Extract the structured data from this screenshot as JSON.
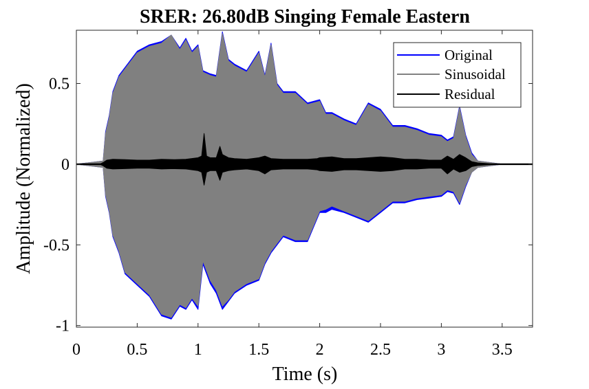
{
  "chart_data": {
    "type": "line",
    "title": "SRER: 26.80dB Singing Female Eastern",
    "xlabel": "Time (s)",
    "ylabel": "Amplitude (Normalized)",
    "xlim": [
      0,
      3.75
    ],
    "ylim": [
      -1.01,
      0.83
    ],
    "x_ticks": [
      0,
      0.5,
      1,
      1.5,
      2,
      2.5,
      3,
      3.5
    ],
    "x_tick_labels": [
      "0",
      "0.5",
      "1",
      "1.5",
      "2",
      "2.5",
      "3",
      "3.5"
    ],
    "y_ticks": [
      -1,
      -0.5,
      0,
      0.5
    ],
    "y_tick_labels": [
      "-1",
      "-0.5",
      "0",
      "0.5"
    ],
    "grid": false,
    "legend_position": "top-right",
    "series": [
      {
        "name": "Original",
        "color": "#0000ff",
        "style": "envelope",
        "x": [
          0,
          0.22,
          0.24,
          0.27,
          0.3,
          0.35,
          0.4,
          0.5,
          0.6,
          0.7,
          0.78,
          0.85,
          0.9,
          0.95,
          1.0,
          1.04,
          1.1,
          1.15,
          1.2,
          1.25,
          1.3,
          1.4,
          1.5,
          1.55,
          1.6,
          1.65,
          1.7,
          1.8,
          1.9,
          2.0,
          2.05,
          2.1,
          2.2,
          2.3,
          2.4,
          2.5,
          2.6,
          2.7,
          2.8,
          2.9,
          3.0,
          3.05,
          3.1,
          3.15,
          3.2,
          3.25,
          3.3,
          3.4,
          3.5,
          3.75
        ],
        "upper": [
          0.0,
          0.02,
          0.2,
          0.3,
          0.45,
          0.55,
          0.6,
          0.7,
          0.74,
          0.76,
          0.8,
          0.72,
          0.78,
          0.7,
          0.74,
          0.58,
          0.56,
          0.55,
          0.82,
          0.65,
          0.62,
          0.58,
          0.7,
          0.55,
          0.75,
          0.5,
          0.45,
          0.45,
          0.38,
          0.4,
          0.32,
          0.32,
          0.28,
          0.25,
          0.38,
          0.34,
          0.24,
          0.24,
          0.22,
          0.19,
          0.18,
          0.15,
          0.17,
          0.36,
          0.18,
          0.07,
          0.02,
          0.01,
          0.0,
          0.0
        ],
        "lower": [
          0.0,
          -0.02,
          -0.2,
          -0.3,
          -0.45,
          -0.55,
          -0.68,
          -0.75,
          -0.82,
          -0.94,
          -0.96,
          -0.88,
          -0.9,
          -0.84,
          -0.9,
          -0.62,
          -0.74,
          -0.8,
          -0.9,
          -0.85,
          -0.8,
          -0.75,
          -0.72,
          -0.62,
          -0.55,
          -0.5,
          -0.45,
          -0.48,
          -0.48,
          -0.3,
          -0.3,
          -0.28,
          -0.3,
          -0.33,
          -0.36,
          -0.3,
          -0.24,
          -0.24,
          -0.22,
          -0.21,
          -0.2,
          -0.17,
          -0.18,
          -0.25,
          -0.14,
          -0.05,
          -0.02,
          -0.01,
          0.0,
          0.0
        ]
      },
      {
        "name": "Sinusoidal",
        "color": "#808080",
        "style": "envelope",
        "x": [
          0,
          0.22,
          0.24,
          0.27,
          0.3,
          0.35,
          0.4,
          0.5,
          0.6,
          0.7,
          0.78,
          0.85,
          0.9,
          0.95,
          1.0,
          1.04,
          1.1,
          1.15,
          1.2,
          1.25,
          1.3,
          1.4,
          1.5,
          1.55,
          1.6,
          1.65,
          1.7,
          1.8,
          1.9,
          2.0,
          2.05,
          2.1,
          2.2,
          2.3,
          2.4,
          2.5,
          2.6,
          2.7,
          2.8,
          2.9,
          3.0,
          3.05,
          3.1,
          3.15,
          3.2,
          3.25,
          3.3,
          3.4,
          3.5,
          3.75
        ],
        "upper": [
          0.0,
          0.02,
          0.19,
          0.29,
          0.44,
          0.54,
          0.59,
          0.69,
          0.73,
          0.75,
          0.8,
          0.71,
          0.77,
          0.69,
          0.73,
          0.57,
          0.55,
          0.54,
          0.81,
          0.64,
          0.61,
          0.57,
          0.69,
          0.54,
          0.74,
          0.49,
          0.44,
          0.44,
          0.37,
          0.39,
          0.31,
          0.31,
          0.27,
          0.24,
          0.37,
          0.33,
          0.23,
          0.23,
          0.21,
          0.18,
          0.17,
          0.14,
          0.16,
          0.35,
          0.17,
          0.06,
          0.02,
          0.01,
          0.0,
          0.0
        ],
        "lower": [
          0.0,
          -0.02,
          -0.19,
          -0.29,
          -0.44,
          -0.54,
          -0.67,
          -0.74,
          -0.81,
          -0.93,
          -0.95,
          -0.87,
          -0.89,
          -0.83,
          -0.88,
          -0.6,
          -0.72,
          -0.78,
          -0.88,
          -0.84,
          -0.79,
          -0.74,
          -0.71,
          -0.61,
          -0.54,
          -0.49,
          -0.44,
          -0.47,
          -0.47,
          -0.29,
          -0.28,
          -0.26,
          -0.29,
          -0.32,
          -0.35,
          -0.29,
          -0.23,
          -0.23,
          -0.21,
          -0.2,
          -0.19,
          -0.16,
          -0.17,
          -0.24,
          -0.13,
          -0.05,
          -0.02,
          -0.01,
          0.0,
          0.0
        ]
      },
      {
        "name": "Residual",
        "color": "#000000",
        "style": "envelope",
        "x": [
          0,
          0.2,
          0.22,
          0.25,
          0.3,
          0.4,
          0.5,
          0.6,
          0.7,
          0.8,
          0.9,
          1.0,
          1.03,
          1.05,
          1.07,
          1.1,
          1.15,
          1.18,
          1.2,
          1.25,
          1.3,
          1.4,
          1.5,
          1.55,
          1.6,
          1.7,
          1.8,
          1.9,
          1.98,
          2.0,
          2.1,
          2.2,
          2.3,
          2.4,
          2.5,
          2.6,
          2.7,
          2.8,
          2.9,
          3.0,
          3.05,
          3.1,
          3.15,
          3.2,
          3.25,
          3.3,
          3.4,
          3.75
        ],
        "upper": [
          0.003,
          0.003,
          0.01,
          0.025,
          0.03,
          0.028,
          0.025,
          0.025,
          0.03,
          0.028,
          0.03,
          0.04,
          0.05,
          0.19,
          0.05,
          0.04,
          0.04,
          0.11,
          0.06,
          0.04,
          0.035,
          0.03,
          0.04,
          0.05,
          0.035,
          0.03,
          0.03,
          0.03,
          0.035,
          0.04,
          0.045,
          0.035,
          0.035,
          0.04,
          0.045,
          0.04,
          0.03,
          0.03,
          0.025,
          0.025,
          0.05,
          0.03,
          0.06,
          0.04,
          0.015,
          0.008,
          0.003,
          0.003
        ],
        "lower": [
          -0.003,
          -0.003,
          -0.01,
          -0.025,
          -0.03,
          -0.028,
          -0.025,
          -0.025,
          -0.03,
          -0.028,
          -0.03,
          -0.04,
          -0.05,
          -0.13,
          -0.05,
          -0.04,
          -0.04,
          -0.1,
          -0.05,
          -0.04,
          -0.035,
          -0.03,
          -0.04,
          -0.06,
          -0.035,
          -0.03,
          -0.03,
          -0.03,
          -0.035,
          -0.04,
          -0.045,
          -0.035,
          -0.035,
          -0.04,
          -0.045,
          -0.04,
          -0.03,
          -0.03,
          -0.025,
          -0.025,
          -0.06,
          -0.03,
          -0.05,
          -0.04,
          -0.015,
          -0.008,
          -0.003,
          -0.003
        ]
      }
    ]
  }
}
